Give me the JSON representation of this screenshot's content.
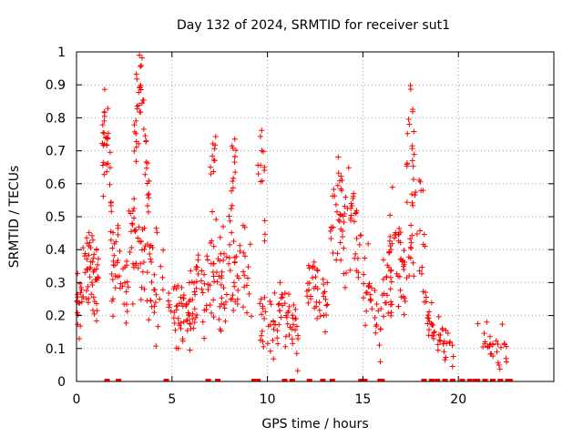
{
  "chart_data": {
    "type": "scatter",
    "title": "Day 132 of 2024, SRMTID for receiver sut1",
    "xlabel": "GPS time / hours",
    "ylabel": "SRMTID / TECUs",
    "xlim": [
      0,
      25
    ],
    "ylim": [
      0,
      1
    ],
    "x_ticks": [
      0,
      5,
      10,
      15,
      20
    ],
    "x_tick_labels": [
      "0",
      "5",
      "10",
      "15",
      "20"
    ],
    "y_ticks": [
      0,
      0.1,
      0.2,
      0.3,
      0.4,
      0.5,
      0.6,
      0.7,
      0.8,
      0.9,
      1
    ],
    "y_tick_labels": [
      "0",
      "0.1",
      "0.2",
      "0.3",
      "0.4",
      "0.5",
      "0.6",
      "0.7",
      "0.8",
      "0.9",
      "1"
    ],
    "grid": true,
    "marker": "+",
    "color": "#ff0000",
    "zero_points_x": [
      1.6,
      2.2,
      4.7,
      6.9,
      7.4,
      9.3,
      9.5,
      10.9,
      11.3,
      12.2,
      12.9,
      13.4,
      14.9,
      15.1,
      15.9,
      16.0,
      18.2,
      18.6,
      18.9,
      19.3,
      19.7,
      20.2,
      20.6,
      20.9,
      21.0,
      21.4,
      21.8,
      22.2,
      22.6,
      22.7
    ],
    "segments": [
      {
        "t": [
          0.0,
          0.2,
          0.4,
          0.6,
          0.8,
          1.0,
          1.2
        ],
        "mean": [
          0.22,
          0.26,
          0.33,
          0.36,
          0.34,
          0.28,
          0.24
        ],
        "spread": 0.1,
        "n": 70
      },
      {
        "t": [
          1.3,
          1.5,
          1.7,
          1.9
        ],
        "mean": [
          0.6,
          0.78,
          0.7,
          0.4
        ],
        "spread": 0.1,
        "n": 40
      },
      {
        "t": [
          1.8,
          2.2,
          2.6,
          3.0,
          3.4,
          3.8,
          4.2,
          4.6
        ],
        "mean": [
          0.3,
          0.38,
          0.3,
          0.45,
          0.4,
          0.33,
          0.3,
          0.28
        ],
        "spread": 0.12,
        "n": 100
      },
      {
        "t": [
          3.0,
          3.2,
          3.4,
          3.6,
          3.8
        ],
        "mean": [
          0.72,
          0.86,
          0.92,
          0.7,
          0.55
        ],
        "spread": 0.1,
        "n": 45
      },
      {
        "t": [
          4.8,
          5.2,
          5.6,
          6.0,
          6.4,
          6.8
        ],
        "mean": [
          0.27,
          0.22,
          0.2,
          0.22,
          0.28,
          0.2
        ],
        "spread": 0.08,
        "n": 80
      },
      {
        "t": [
          6.8,
          7.2,
          7.6,
          8.0,
          8.4,
          8.8,
          9.2
        ],
        "mean": [
          0.25,
          0.35,
          0.3,
          0.42,
          0.3,
          0.38,
          0.28
        ],
        "spread": 0.12,
        "n": 90
      },
      {
        "t": [
          7.0,
          7.3
        ],
        "mean": [
          0.62,
          0.7
        ],
        "spread": 0.06,
        "n": 10
      },
      {
        "t": [
          8.1,
          8.4
        ],
        "mean": [
          0.6,
          0.68
        ],
        "spread": 0.08,
        "n": 14
      },
      {
        "t": [
          9.5,
          9.7,
          9.9
        ],
        "mean": [
          0.6,
          0.75,
          0.5
        ],
        "spread": 0.1,
        "n": 14
      },
      {
        "t": [
          9.6,
          10.0,
          10.4,
          10.8,
          11.2,
          11.6
        ],
        "mean": [
          0.22,
          0.14,
          0.16,
          0.22,
          0.18,
          0.14
        ],
        "spread": 0.08,
        "n": 70
      },
      {
        "t": [
          12.0,
          12.4,
          12.8,
          13.2
        ],
        "mean": [
          0.26,
          0.3,
          0.24,
          0.2
        ],
        "spread": 0.07,
        "n": 40
      },
      {
        "t": [
          13.3,
          13.7,
          14.1,
          14.5,
          14.9
        ],
        "mean": [
          0.4,
          0.55,
          0.38,
          0.52,
          0.35
        ],
        "spread": 0.12,
        "n": 65
      },
      {
        "t": [
          15.0,
          15.4,
          15.8,
          16.2,
          16.6
        ],
        "mean": [
          0.28,
          0.25,
          0.18,
          0.28,
          0.22
        ],
        "spread": 0.1,
        "n": 50
      },
      {
        "t": [
          16.3,
          16.7,
          17.1,
          17.5,
          17.9,
          18.3
        ],
        "mean": [
          0.45,
          0.4,
          0.3,
          0.48,
          0.55,
          0.4
        ],
        "spread": 0.12,
        "n": 75
      },
      {
        "t": [
          17.3,
          17.5,
          17.7
        ],
        "mean": [
          0.7,
          0.8,
          0.72
        ],
        "spread": 0.08,
        "n": 16
      },
      {
        "t": [
          18.2,
          18.6,
          19.0,
          19.4,
          19.8
        ],
        "mean": [
          0.28,
          0.16,
          0.12,
          0.14,
          0.08
        ],
        "spread": 0.06,
        "n": 45
      },
      {
        "t": [
          21.0,
          21.4,
          21.8,
          22.2,
          22.6
        ],
        "mean": [
          0.2,
          0.12,
          0.09,
          0.11,
          0.08
        ],
        "spread": 0.05,
        "n": 30
      }
    ]
  }
}
